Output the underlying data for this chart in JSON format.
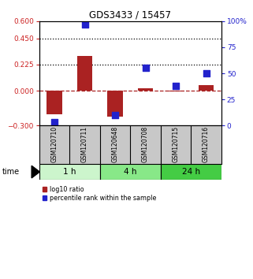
{
  "title": "GDS3433 / 15457",
  "samples": [
    "GSM120710",
    "GSM120711",
    "GSM120648",
    "GSM120708",
    "GSM120715",
    "GSM120716"
  ],
  "log10_ratio": [
    -0.2,
    0.3,
    -0.22,
    0.02,
    -0.005,
    0.05
  ],
  "percentile_rank": [
    3,
    97,
    10,
    55,
    38,
    50
  ],
  "time_groups": [
    {
      "label": "1 h",
      "samples": [
        0,
        1
      ],
      "color": "#ccf5cc"
    },
    {
      "label": "4 h",
      "samples": [
        2,
        3
      ],
      "color": "#88e888"
    },
    {
      "label": "24 h",
      "samples": [
        4,
        5
      ],
      "color": "#44cc44"
    }
  ],
  "ylim_left": [
    -0.3,
    0.6
  ],
  "ylim_right": [
    0,
    100
  ],
  "yticks_left": [
    -0.3,
    0,
    0.225,
    0.45,
    0.6
  ],
  "yticks_right": [
    0,
    25,
    50,
    75,
    100
  ],
  "hlines": [
    0.45,
    0.225
  ],
  "bar_color": "#aa2222",
  "dot_color": "#2222cc",
  "bar_width": 0.5,
  "dot_size": 40,
  "background_color": "#ffffff",
  "label_color_left": "#cc2222",
  "label_color_right": "#2222cc",
  "sample_box_color": "#c8c8c8"
}
